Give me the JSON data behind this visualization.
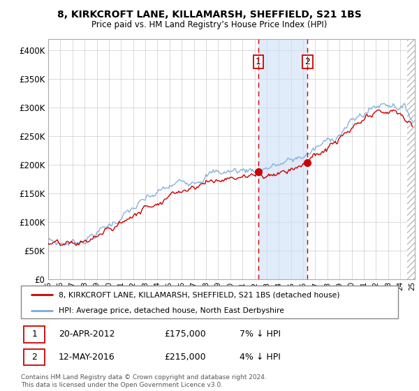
{
  "title": "8, KIRKCROFT LANE, KILLAMARSH, SHEFFIELD, S21 1BS",
  "subtitle": "Price paid vs. HM Land Registry’s House Price Index (HPI)",
  "legend_line1": "8, KIRKCROFT LANE, KILLAMARSH, SHEFFIELD, S21 1BS (detached house)",
  "legend_line2": "HPI: Average price, detached house, North East Derbyshire",
  "transaction1_label": "1",
  "transaction1_date": "20-APR-2012",
  "transaction1_price": 175000,
  "transaction1_pct": "7% ↓ HPI",
  "transaction1_year": 2012.29,
  "transaction2_label": "2",
  "transaction2_date": "12-MAY-2016",
  "transaction2_price": 215000,
  "transaction2_pct": "4% ↓ HPI",
  "transaction2_year": 2016.37,
  "hpi_color": "#7aaadd",
  "price_color": "#cc0000",
  "marker_color": "#cc0000",
  "vline_color": "#cc0000",
  "shade_color": "#cce0f5",
  "ylim_max": 420000,
  "ylim_min": 0,
  "start_year": 1995,
  "end_year": 2025,
  "footnote": "Contains HM Land Registry data © Crown copyright and database right 2024.\nThis data is licensed under the Open Government Licence v3.0.",
  "background_color": "#ffffff",
  "grid_color": "#cccccc"
}
